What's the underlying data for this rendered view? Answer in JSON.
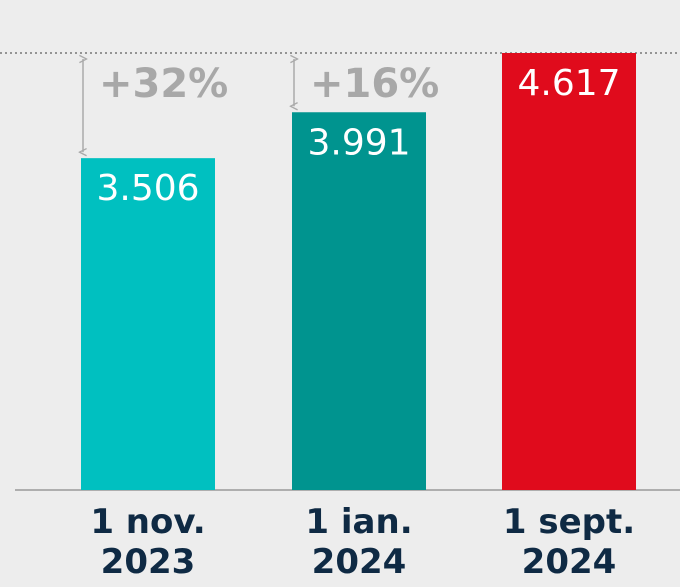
{
  "chart_data": {
    "type": "bar",
    "categories": [
      "1 nov. 2023",
      "1 ian. 2024",
      "1 sept. 2024"
    ],
    "values": [
      3506,
      3991,
      4617
    ],
    "value_labels": [
      "3.506",
      "3.991",
      "4.617"
    ],
    "colors": [
      "#00c0c0",
      "#00948f",
      "#e00b1c"
    ],
    "annotations": [
      "+32%",
      "+16%"
    ],
    "ylim": [
      0,
      4617
    ]
  }
}
